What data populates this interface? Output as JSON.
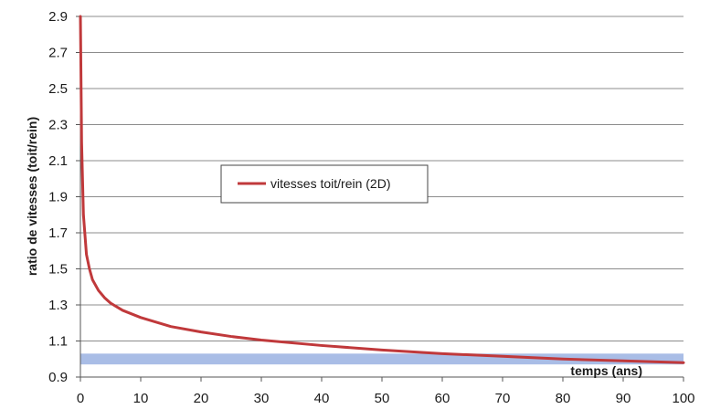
{
  "chart_data": {
    "type": "line",
    "title": "",
    "xlabel": "temps (ans)",
    "ylabel": "ratio de vitesses (toit/rein)",
    "xlim": [
      0,
      100
    ],
    "ylim": [
      0.9,
      2.9
    ],
    "x_ticks": [
      "0",
      "10",
      "20",
      "30",
      "40",
      "50",
      "60",
      "70",
      "80",
      "90",
      "100"
    ],
    "y_ticks": [
      "0.9",
      "1.1",
      "1.3",
      "1.5",
      "1.7",
      "1.9",
      "2.1",
      "2.3",
      "2.5",
      "2.7",
      "2.9"
    ],
    "grid": "horizontal",
    "legend_position": "center",
    "band": {
      "y_from": 0.97,
      "y_to": 1.03,
      "color": "#a9bde6"
    },
    "series": [
      {
        "name": "vitesses toit/rein (2D)",
        "color": "#c0393b",
        "x": [
          0,
          0.2,
          0.5,
          1,
          1.5,
          2,
          3,
          4,
          5,
          7,
          10,
          15,
          20,
          25,
          30,
          40,
          50,
          60,
          70,
          80,
          90,
          100
        ],
        "y": [
          2.9,
          2.2,
          1.8,
          1.58,
          1.5,
          1.44,
          1.38,
          1.34,
          1.31,
          1.27,
          1.23,
          1.18,
          1.15,
          1.125,
          1.105,
          1.075,
          1.05,
          1.03,
          1.015,
          1.0,
          0.99,
          0.98
        ]
      }
    ]
  }
}
